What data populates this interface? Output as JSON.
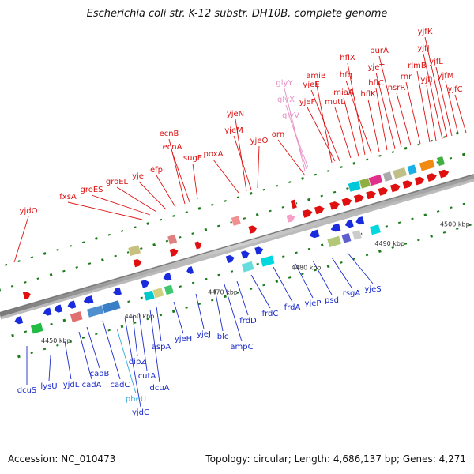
{
  "title": "Escherichia coli str. K-12 substr. DH10B, complete genome",
  "accession_text": "Accession: NC_010473",
  "info_text": "Topology: circular; Length: 4,686,137 bp; Genes: 4,271",
  "colors": {
    "background": "#ffffff",
    "axis_dark": "#777777",
    "axis_light": "#bbbbbb",
    "tick_green": "#1a7a1a",
    "label_top": "#dd1111",
    "label_bottom": "#1a2bcc",
    "label_trna": "#e690c6",
    "label_trna_bottom": "#33aadd",
    "arrow_blue": "#1a2bdd",
    "arrow_red": "#e01010"
  },
  "scale_labels": [
    "4450 kbp",
    "4460 kbp",
    "4470 kbp",
    "4480 kbp",
    "4490 kbp",
    "4500 kbp"
  ],
  "genes_top": [
    "yjdO",
    "fxsA",
    "groES",
    "groEL",
    "yjeI",
    "efp",
    "ecnB",
    "ecnA",
    "sugE",
    "poxA",
    "yjeN",
    "yjeM",
    "yjeO",
    "orn",
    "glyY",
    "glyX",
    "glyV",
    "amiB",
    "yjeE",
    "yjeF",
    "mutL",
    "miaA",
    "hflX",
    "hfq",
    "hflK",
    "hflC",
    "yjeT",
    "purA",
    "nsrR",
    "rnr",
    "rlmB",
    "yjfI",
    "yjfJ",
    "yjfK",
    "yjfL",
    "yjfM",
    "yjfC"
  ],
  "genes_bottom": [
    "dcuS",
    "lysU",
    "yjdL",
    "cadA",
    "cadB",
    "cadC",
    "pheU",
    "yjdC",
    "dipZ",
    "cutA",
    "dcuA",
    "aspA",
    "yjeH",
    "yjeJ",
    "blc",
    "ampC",
    "frdD",
    "frdC",
    "frdA",
    "yjeP",
    "psd",
    "rsgA",
    "yjeS"
  ]
}
